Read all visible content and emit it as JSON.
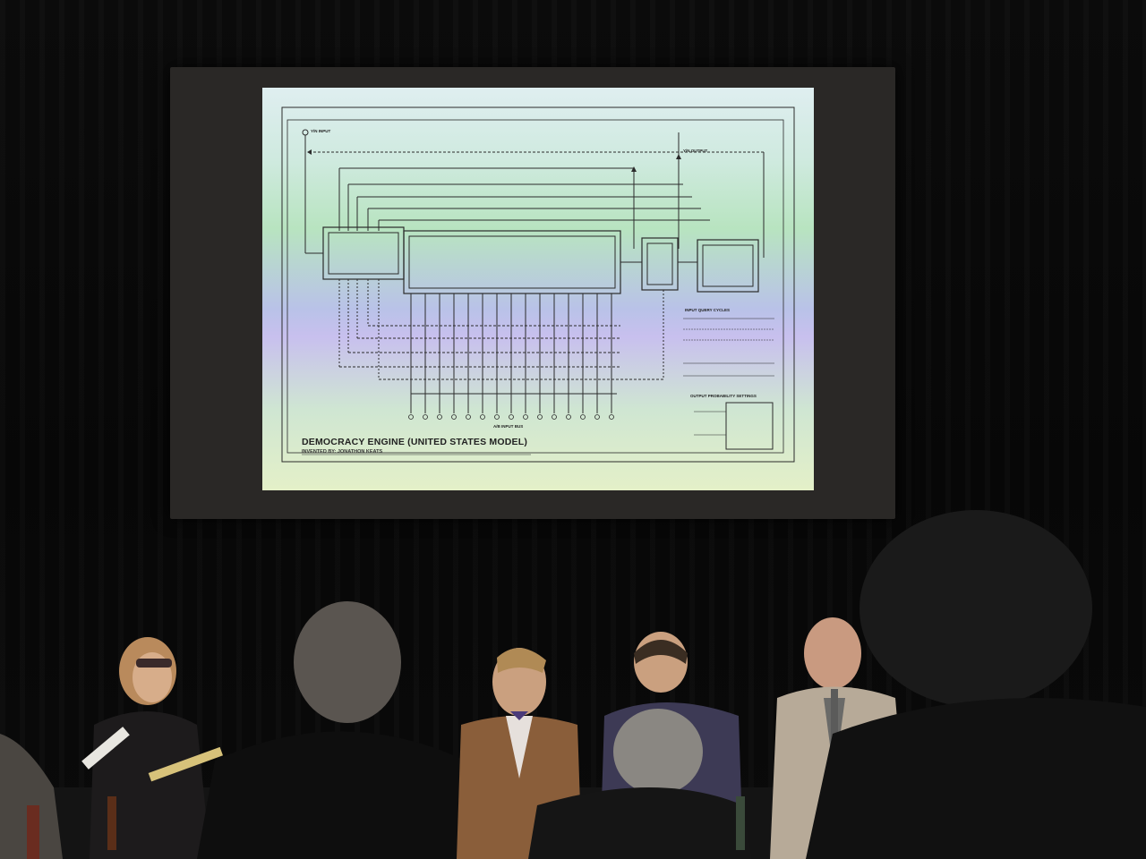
{
  "slide": {
    "title": "DEMOCRACY ENGINE (UNITED STATES MODEL)",
    "subtitle": "INVENTED BY: JONATHON KEATS",
    "labels": {
      "input": "Y/N INPUT",
      "output": "Y/N OUTPUT",
      "bus": "A/B INPUT BUS",
      "query": "INPUT QUERY CYCLES",
      "probability": "OUTPUT PROBABILITY SETTINGS"
    }
  },
  "colors": {
    "background": "#050505",
    "screen_frame": "#2a2826",
    "diagram_line": "#2b2b2b"
  }
}
